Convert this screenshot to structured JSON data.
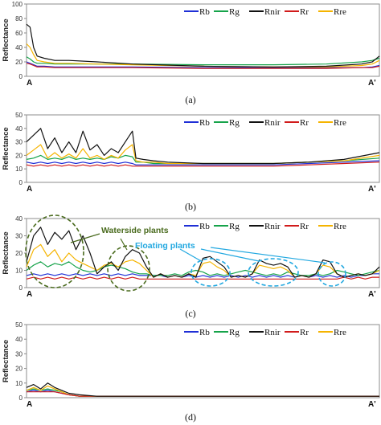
{
  "chart_data": [
    {
      "type": "line",
      "caption": "(a)",
      "ylabel": "Reflectance",
      "x_start_label": "A",
      "x_end_label": "A'",
      "ylim": [
        0,
        100
      ],
      "yticks": [
        0,
        20,
        40,
        60,
        80,
        100
      ],
      "grid": false,
      "legend_position": "top-right",
      "x": [
        0,
        0.01,
        0.02,
        0.03,
        0.05,
        0.08,
        0.12,
        0.2,
        0.3,
        0.5,
        0.7,
        0.85,
        0.95,
        0.98,
        1
      ],
      "series": [
        {
          "name": "Rb",
          "color": "#1f2fd6",
          "values": [
            20,
            18,
            16,
            14,
            14,
            13,
            13,
            13,
            13,
            12,
            12,
            12,
            12,
            13,
            15
          ]
        },
        {
          "name": "Rg",
          "color": "#16a34a",
          "values": [
            27,
            24,
            20,
            18,
            18,
            17,
            17,
            17,
            17,
            16,
            16,
            17,
            20,
            22,
            25
          ]
        },
        {
          "name": "Rnir",
          "color": "#111111",
          "values": [
            72,
            68,
            40,
            28,
            25,
            22,
            22,
            20,
            17,
            14,
            13,
            14,
            17,
            20,
            28
          ]
        },
        {
          "name": "Rr",
          "color": "#d11b1b",
          "values": [
            18,
            17,
            15,
            13,
            13,
            12,
            12,
            12,
            12,
            11,
            11,
            11,
            12,
            12,
            14
          ]
        },
        {
          "name": "Rre",
          "color": "#f5b400",
          "values": [
            45,
            40,
            30,
            22,
            20,
            18,
            18,
            17,
            16,
            14,
            13,
            13,
            15,
            17,
            22
          ]
        }
      ]
    },
    {
      "type": "line",
      "caption": "(b)",
      "ylabel": "Reflectance",
      "x_start_label": "A",
      "x_end_label": "A'",
      "ylim": [
        0,
        50
      ],
      "yticks": [
        0,
        10,
        20,
        30,
        40,
        50
      ],
      "grid": false,
      "legend_position": "top-right",
      "x": [
        0,
        0.02,
        0.04,
        0.06,
        0.08,
        0.1,
        0.12,
        0.14,
        0.16,
        0.18,
        0.2,
        0.22,
        0.24,
        0.26,
        0.28,
        0.3,
        0.31,
        0.33,
        0.36,
        0.4,
        0.5,
        0.6,
        0.7,
        0.8,
        0.9,
        1
      ],
      "series": [
        {
          "name": "Rb",
          "color": "#1f2fd6",
          "values": [
            15,
            14,
            15,
            14,
            15,
            14,
            15,
            14,
            15,
            14,
            15,
            14,
            15,
            14,
            15,
            14,
            13,
            13,
            13,
            13,
            13,
            13,
            13,
            14,
            15,
            16
          ]
        },
        {
          "name": "Rg",
          "color": "#16a34a",
          "values": [
            17,
            18,
            20,
            17,
            18,
            17,
            19,
            17,
            18,
            17,
            18,
            17,
            19,
            18,
            20,
            19,
            15,
            15,
            14,
            14,
            14,
            14,
            14,
            15,
            16,
            18
          ]
        },
        {
          "name": "Rnir",
          "color": "#111111",
          "values": [
            30,
            35,
            40,
            25,
            33,
            22,
            30,
            22,
            38,
            24,
            28,
            20,
            25,
            22,
            30,
            38,
            18,
            17,
            16,
            15,
            14,
            14,
            14,
            15,
            17,
            22
          ]
        },
        {
          "name": "Rr",
          "color": "#d11b1b",
          "values": [
            13,
            12,
            13,
            12,
            13,
            12,
            13,
            12,
            13,
            12,
            13,
            12,
            13,
            12,
            13,
            12,
            12,
            12,
            12,
            12,
            12,
            12,
            12,
            13,
            14,
            15
          ]
        },
        {
          "name": "Rre",
          "color": "#f5b400",
          "values": [
            20,
            24,
            28,
            18,
            22,
            18,
            21,
            18,
            25,
            18,
            20,
            17,
            20,
            18,
            24,
            28,
            16,
            15,
            15,
            14,
            14,
            14,
            14,
            15,
            16,
            20
          ]
        }
      ]
    },
    {
      "type": "line",
      "caption": "(c)",
      "ylabel": "Reflectance",
      "x_start_label": "A",
      "x_end_label": "A'",
      "ylim": [
        0,
        40
      ],
      "yticks": [
        0,
        10,
        20,
        30,
        40
      ],
      "grid": false,
      "legend_position": "top-right",
      "annotations": [
        {
          "text": "Waterside plants",
          "color": "#4a6b1e"
        },
        {
          "text": "Floating plants",
          "color": "#22a8e0"
        }
      ],
      "x": [
        0,
        0.02,
        0.04,
        0.06,
        0.08,
        0.1,
        0.12,
        0.14,
        0.16,
        0.18,
        0.2,
        0.22,
        0.24,
        0.26,
        0.28,
        0.3,
        0.32,
        0.34,
        0.36,
        0.38,
        0.4,
        0.42,
        0.44,
        0.46,
        0.48,
        0.5,
        0.52,
        0.54,
        0.56,
        0.58,
        0.6,
        0.62,
        0.64,
        0.66,
        0.68,
        0.7,
        0.72,
        0.74,
        0.76,
        0.78,
        0.8,
        0.82,
        0.84,
        0.86,
        0.88,
        0.9,
        0.92,
        0.94,
        0.96,
        0.98,
        1
      ],
      "series": [
        {
          "name": "Rb",
          "color": "#1f2fd6",
          "values": [
            7,
            8,
            7,
            8,
            7,
            8,
            7,
            8,
            7,
            8,
            7,
            8,
            7,
            8,
            7,
            8,
            7,
            7,
            7,
            7,
            6,
            7,
            6,
            7,
            6,
            7,
            6,
            7,
            6,
            7,
            6,
            7,
            6,
            7,
            6,
            7,
            6,
            7,
            6,
            7,
            6,
            7,
            6,
            7,
            6,
            7,
            6,
            7,
            7,
            8,
            8
          ]
        },
        {
          "name": "Rg",
          "color": "#16a34a",
          "values": [
            10,
            13,
            15,
            12,
            14,
            13,
            15,
            12,
            10,
            9,
            10,
            12,
            13,
            12,
            11,
            9,
            8,
            8,
            7,
            7,
            7,
            8,
            7,
            9,
            10,
            9,
            7,
            8,
            7,
            8,
            9,
            10,
            9,
            8,
            7,
            8,
            7,
            9,
            8,
            7,
            7,
            8,
            7,
            8,
            10,
            9,
            8,
            7,
            8,
            9,
            10
          ]
        },
        {
          "name": "Rnir",
          "color": "#111111",
          "values": [
            15,
            30,
            35,
            25,
            32,
            28,
            33,
            22,
            30,
            20,
            8,
            12,
            15,
            10,
            18,
            22,
            20,
            12,
            6,
            8,
            6,
            7,
            6,
            8,
            6,
            17,
            18,
            15,
            12,
            6,
            7,
            6,
            8,
            16,
            14,
            13,
            14,
            12,
            6,
            7,
            6,
            8,
            16,
            15,
            8,
            6,
            7,
            8,
            7,
            8,
            12
          ]
        },
        {
          "name": "Rr",
          "color": "#d11b1b",
          "values": [
            5,
            6,
            5,
            6,
            5,
            6,
            5,
            6,
            5,
            6,
            5,
            6,
            5,
            6,
            5,
            6,
            5,
            5,
            5,
            5,
            5,
            5,
            5,
            5,
            5,
            5,
            5,
            5,
            5,
            5,
            5,
            5,
            5,
            5,
            5,
            5,
            5,
            5,
            5,
            5,
            5,
            5,
            5,
            5,
            5,
            6,
            5,
            6,
            5,
            6,
            6
          ]
        },
        {
          "name": "Rre",
          "color": "#f5b400",
          "values": [
            12,
            22,
            25,
            18,
            22,
            15,
            20,
            16,
            14,
            12,
            10,
            13,
            14,
            12,
            15,
            16,
            14,
            10,
            6,
            8,
            6,
            7,
            6,
            8,
            7,
            14,
            15,
            12,
            10,
            6,
            7,
            6,
            8,
            13,
            12,
            11,
            12,
            10,
            6,
            7,
            6,
            8,
            13,
            12,
            8,
            6,
            7,
            8,
            7,
            8,
            10
          ]
        }
      ]
    },
    {
      "type": "line",
      "caption": "(d)",
      "ylabel": "Reflectance",
      "x_start_label": "A",
      "x_end_label": "A'",
      "ylim": [
        0,
        50
      ],
      "yticks": [
        0,
        10,
        20,
        30,
        40,
        50
      ],
      "grid": false,
      "legend_position": "top-right",
      "x": [
        0,
        0.02,
        0.04,
        0.06,
        0.08,
        0.1,
        0.12,
        0.15,
        0.2,
        0.3,
        0.5,
        0.7,
        0.9,
        1
      ],
      "series": [
        {
          "name": "Rb",
          "color": "#1f2fd6",
          "values": [
            4,
            5,
            4,
            5,
            4,
            3,
            2,
            1,
            1,
            1,
            1,
            1,
            1,
            1
          ]
        },
        {
          "name": "Rg",
          "color": "#16a34a",
          "values": [
            5,
            6,
            5,
            6,
            5,
            4,
            2,
            1,
            1,
            1,
            1,
            1,
            1,
            1
          ]
        },
        {
          "name": "Rnir",
          "color": "#111111",
          "values": [
            7,
            9,
            6,
            10,
            7,
            5,
            3,
            2,
            1,
            1,
            1,
            1,
            1,
            1
          ]
        },
        {
          "name": "Rr",
          "color": "#d11b1b",
          "values": [
            4,
            4,
            4,
            4,
            4,
            3,
            2,
            1,
            1,
            1,
            1,
            1,
            1,
            1
          ]
        },
        {
          "name": "Rre",
          "color": "#f5b400",
          "values": [
            5,
            7,
            5,
            8,
            6,
            4,
            2,
            1,
            1,
            1,
            1,
            1,
            1,
            1
          ]
        }
      ]
    }
  ]
}
